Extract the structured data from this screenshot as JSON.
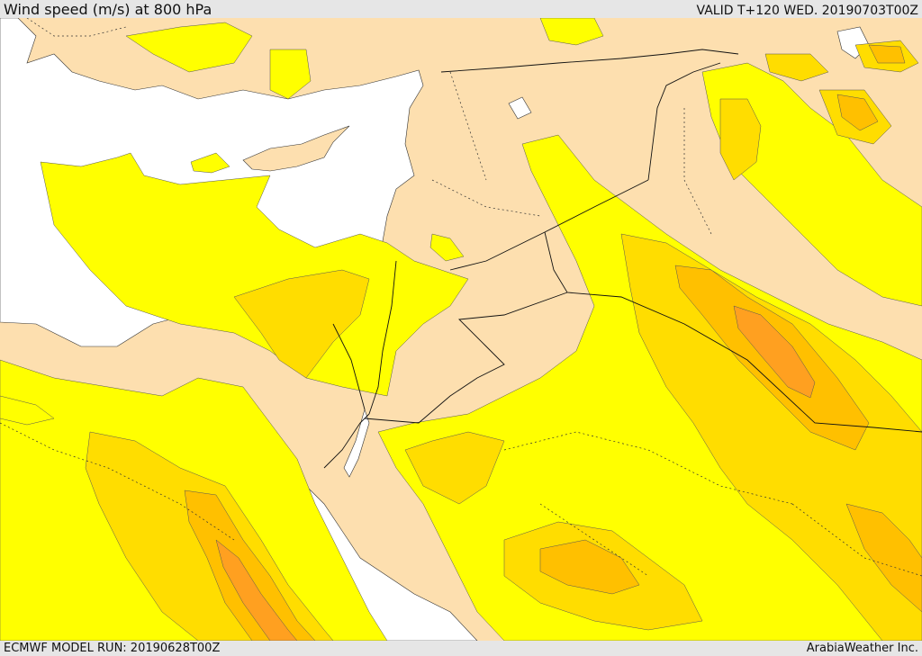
{
  "header": {
    "title": "Wind speed (m/s) at 800 hPa",
    "valid": "VALID T+120 WED. 20190703T00Z"
  },
  "footer": {
    "model_run": "ECMWF MODEL RUN: 20190628T00Z",
    "credit": "ArabiaWeather Inc."
  },
  "colors": {
    "sea": "#ffffff",
    "land_low": "#fddfaf",
    "wind_yellow": "#ffff00",
    "wind_gold": "#ffdd00",
    "wind_amber": "#ffc000",
    "wind_orange": "#ffa020",
    "bar": "#e6e6e6"
  }
}
